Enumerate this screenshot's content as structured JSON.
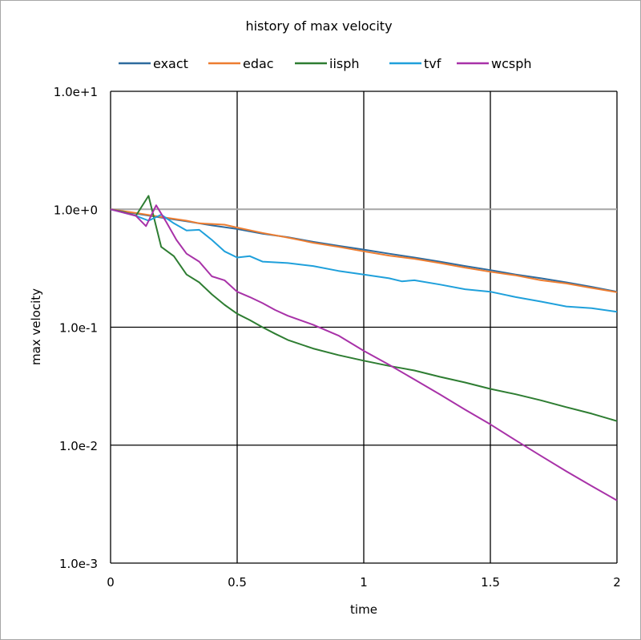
{
  "chart_data": {
    "type": "line",
    "title": "history of max velocity",
    "xlabel": "time",
    "ylabel": "max velocity",
    "xlim": [
      0,
      2
    ],
    "ylim": [
      0.001,
      10
    ],
    "yscale": "log",
    "grid": true,
    "legend_position": "top",
    "x_tick_labels": [
      "0",
      "0.5",
      "1",
      "1.5",
      "2"
    ],
    "x_tick_values": [
      0,
      0.5,
      1,
      1.5,
      2
    ],
    "y_tick_labels": [
      "1.0e+1",
      "1.0e+0",
      "1.0e-1",
      "1.0e-2",
      "1.0e-3"
    ],
    "y_tick_values": [
      10,
      1,
      0.1,
      0.01,
      0.001
    ],
    "series": [
      {
        "name": "exact",
        "color": "#2e6b9e",
        "x": [
          0,
          0.1,
          0.2,
          0.3,
          0.4,
          0.5,
          0.6,
          0.7,
          0.8,
          0.9,
          1.0,
          1.1,
          1.2,
          1.3,
          1.4,
          1.5,
          1.6,
          1.7,
          1.8,
          1.9,
          2.0
        ],
        "y": [
          1.0,
          0.92,
          0.85,
          0.79,
          0.73,
          0.68,
          0.62,
          0.58,
          0.53,
          0.49,
          0.455,
          0.42,
          0.39,
          0.36,
          0.33,
          0.305,
          0.28,
          0.26,
          0.24,
          0.22,
          0.2
        ]
      },
      {
        "name": "edac",
        "color": "#ed7d31",
        "x": [
          0,
          0.1,
          0.2,
          0.3,
          0.35,
          0.4,
          0.45,
          0.5,
          0.6,
          0.7,
          0.8,
          0.9,
          1.0,
          1.1,
          1.2,
          1.3,
          1.4,
          1.5,
          1.6,
          1.7,
          1.8,
          1.9,
          2.0
        ],
        "y": [
          1.0,
          0.93,
          0.86,
          0.8,
          0.76,
          0.75,
          0.74,
          0.7,
          0.63,
          0.575,
          0.52,
          0.48,
          0.44,
          0.405,
          0.38,
          0.35,
          0.32,
          0.295,
          0.275,
          0.25,
          0.235,
          0.215,
          0.198
        ]
      },
      {
        "name": "iisph",
        "color": "#2e7d32",
        "x": [
          0,
          0.05,
          0.1,
          0.15,
          0.2,
          0.25,
          0.3,
          0.35,
          0.4,
          0.45,
          0.5,
          0.55,
          0.6,
          0.65,
          0.7,
          0.8,
          0.9,
          1.0,
          1.1,
          1.2,
          1.3,
          1.4,
          1.5,
          1.6,
          1.7,
          1.8,
          1.9,
          2.0
        ],
        "y": [
          1.0,
          0.95,
          0.88,
          1.3,
          0.48,
          0.4,
          0.28,
          0.24,
          0.19,
          0.155,
          0.13,
          0.115,
          0.1,
          0.088,
          0.078,
          0.066,
          0.058,
          0.052,
          0.047,
          0.043,
          0.038,
          0.034,
          0.03,
          0.027,
          0.024,
          0.021,
          0.0185,
          0.016
        ]
      },
      {
        "name": "tvf",
        "color": "#1fa0db",
        "x": [
          0,
          0.1,
          0.15,
          0.2,
          0.25,
          0.3,
          0.35,
          0.4,
          0.45,
          0.5,
          0.55,
          0.6,
          0.7,
          0.8,
          0.9,
          1.0,
          1.1,
          1.15,
          1.2,
          1.3,
          1.4,
          1.5,
          1.6,
          1.7,
          1.8,
          1.9,
          2.0
        ],
        "y": [
          1.0,
          0.88,
          0.8,
          0.9,
          0.76,
          0.66,
          0.67,
          0.55,
          0.44,
          0.39,
          0.4,
          0.36,
          0.35,
          0.33,
          0.3,
          0.28,
          0.26,
          0.245,
          0.25,
          0.23,
          0.21,
          0.2,
          0.18,
          0.165,
          0.15,
          0.145,
          0.135
        ]
      },
      {
        "name": "wcsph",
        "color": "#a832a8",
        "x": [
          0,
          0.1,
          0.14,
          0.18,
          0.22,
          0.26,
          0.3,
          0.35,
          0.4,
          0.45,
          0.5,
          0.55,
          0.6,
          0.65,
          0.7,
          0.8,
          0.9,
          1.0,
          1.1,
          1.2,
          1.3,
          1.4,
          1.5,
          1.6,
          1.7,
          1.8,
          1.9,
          2.0
        ],
        "y": [
          1.0,
          0.88,
          0.72,
          1.08,
          0.78,
          0.55,
          0.42,
          0.36,
          0.27,
          0.25,
          0.2,
          0.18,
          0.16,
          0.14,
          0.125,
          0.105,
          0.085,
          0.063,
          0.048,
          0.036,
          0.027,
          0.02,
          0.015,
          0.011,
          0.0081,
          0.006,
          0.0045,
          0.0034
        ]
      }
    ]
  }
}
